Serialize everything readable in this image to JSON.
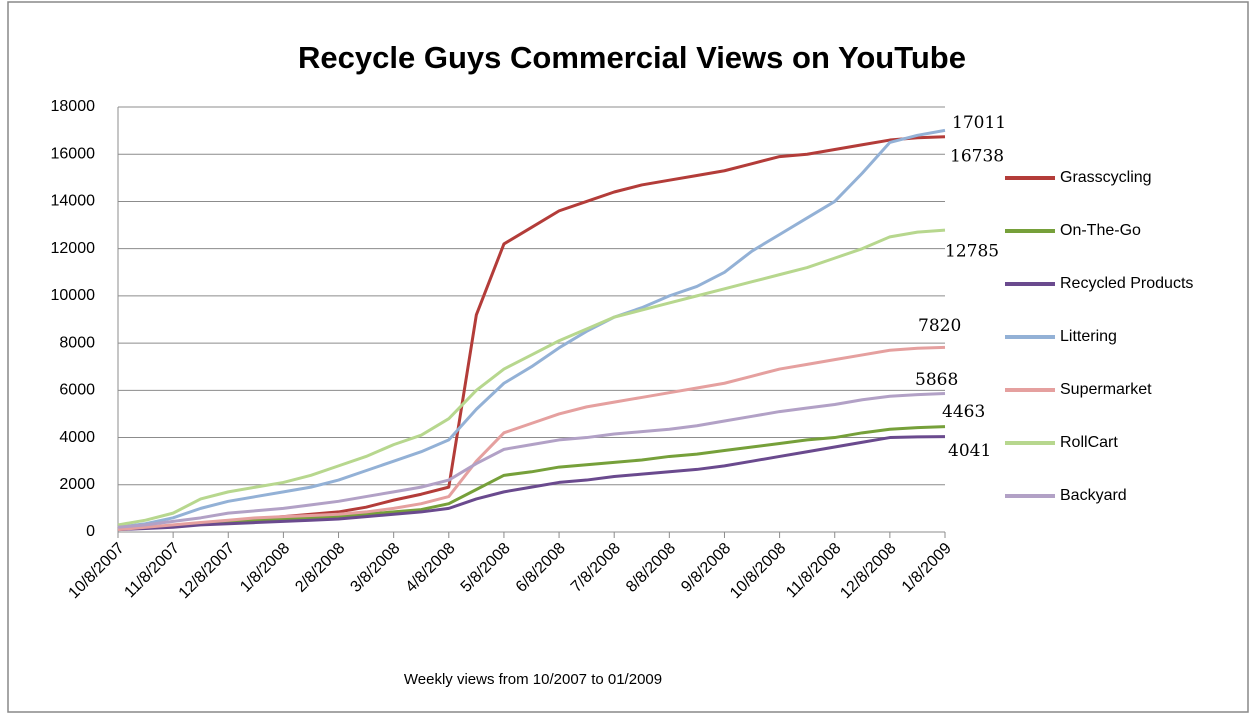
{
  "chart_data": {
    "type": "line",
    "title": "Recycle Guys Commercial Views on YouTube",
    "x_label": "Weekly views from 10/2007 to 01/2009",
    "categories": [
      "10/8/2007",
      null,
      "11/8/2007",
      null,
      "12/8/2007",
      null,
      "1/8/2008",
      null,
      "2/8/2008",
      null,
      "3/8/2008",
      null,
      "4/8/2008",
      null,
      "5/8/2008",
      null,
      "6/8/2008",
      null,
      "7/8/2008",
      null,
      "8/8/2008",
      null,
      "9/8/2008",
      null,
      "10/8/2008",
      null,
      "11/8/2008",
      null,
      "12/8/2008",
      null,
      "1/8/2009"
    ],
    "ylim": [
      0,
      18000
    ],
    "yticks": [
      0,
      2000,
      4000,
      6000,
      8000,
      10000,
      12000,
      14000,
      16000,
      18000
    ],
    "grid": true,
    "legend": "right",
    "series": [
      {
        "name": "Grasscycling",
        "color": "#b33c39",
        "values": [
          150,
          200,
          250,
          350,
          450,
          550,
          650,
          750,
          850,
          1050,
          1350,
          1600,
          1900,
          9200,
          12200,
          12900,
          13600,
          14000,
          14400,
          14700,
          14900,
          15100,
          15300,
          15600,
          15900,
          16000,
          16200,
          16400,
          16600,
          16700,
          16738
        ]
      },
      {
        "name": "On-The-Go",
        "color": "#76a03a",
        "values": [
          150,
          200,
          250,
          350,
          450,
          500,
          550,
          600,
          650,
          750,
          850,
          950,
          1200,
          1800,
          2400,
          2550,
          2750,
          2850,
          2950,
          3050,
          3200,
          3300,
          3450,
          3600,
          3750,
          3900,
          4000,
          4200,
          4350,
          4420,
          4463
        ]
      },
      {
        "name": "Recycled Products",
        "color": "#6a4a8e",
        "values": [
          100,
          150,
          200,
          300,
          350,
          400,
          450,
          500,
          550,
          650,
          750,
          850,
          1000,
          1400,
          1700,
          1900,
          2100,
          2200,
          2350,
          2450,
          2550,
          2650,
          2800,
          3000,
          3200,
          3400,
          3600,
          3800,
          4000,
          4030,
          4041
        ]
      },
      {
        "name": "Littering",
        "color": "#93b1d6",
        "values": [
          200,
          350,
          600,
          1000,
          1300,
          1500,
          1700,
          1900,
          2200,
          2600,
          3000,
          3400,
          3900,
          5200,
          6300,
          7000,
          7800,
          8500,
          9100,
          9500,
          10000,
          10400,
          11000,
          11900,
          12600,
          13300,
          14000,
          15200,
          16500,
          16800,
          17011
        ]
      },
      {
        "name": "Supermarket",
        "color": "#e5a09f",
        "values": [
          100,
          200,
          300,
          400,
          500,
          600,
          650,
          700,
          750,
          850,
          1000,
          1200,
          1500,
          3000,
          4200,
          4600,
          5000,
          5300,
          5500,
          5700,
          5900,
          6100,
          6300,
          6600,
          6900,
          7100,
          7300,
          7500,
          7700,
          7780,
          7820
        ]
      },
      {
        "name": "RollCart",
        "color": "#b7d78e",
        "values": [
          300,
          500,
          800,
          1400,
          1700,
          1900,
          2100,
          2400,
          2800,
          3200,
          3700,
          4100,
          4800,
          6000,
          6900,
          7500,
          8100,
          8600,
          9100,
          9400,
          9700,
          10000,
          10300,
          10600,
          10900,
          11200,
          11600,
          12000,
          12500,
          12700,
          12785
        ]
      },
      {
        "name": "Backyard",
        "color": "#b2a1c6",
        "values": [
          200,
          300,
          450,
          600,
          800,
          900,
          1000,
          1150,
          1300,
          1500,
          1700,
          1900,
          2200,
          2900,
          3500,
          3700,
          3900,
          4000,
          4150,
          4250,
          4350,
          4500,
          4700,
          4900,
          5100,
          5250,
          5400,
          5600,
          5750,
          5820,
          5868
        ]
      }
    ]
  }
}
